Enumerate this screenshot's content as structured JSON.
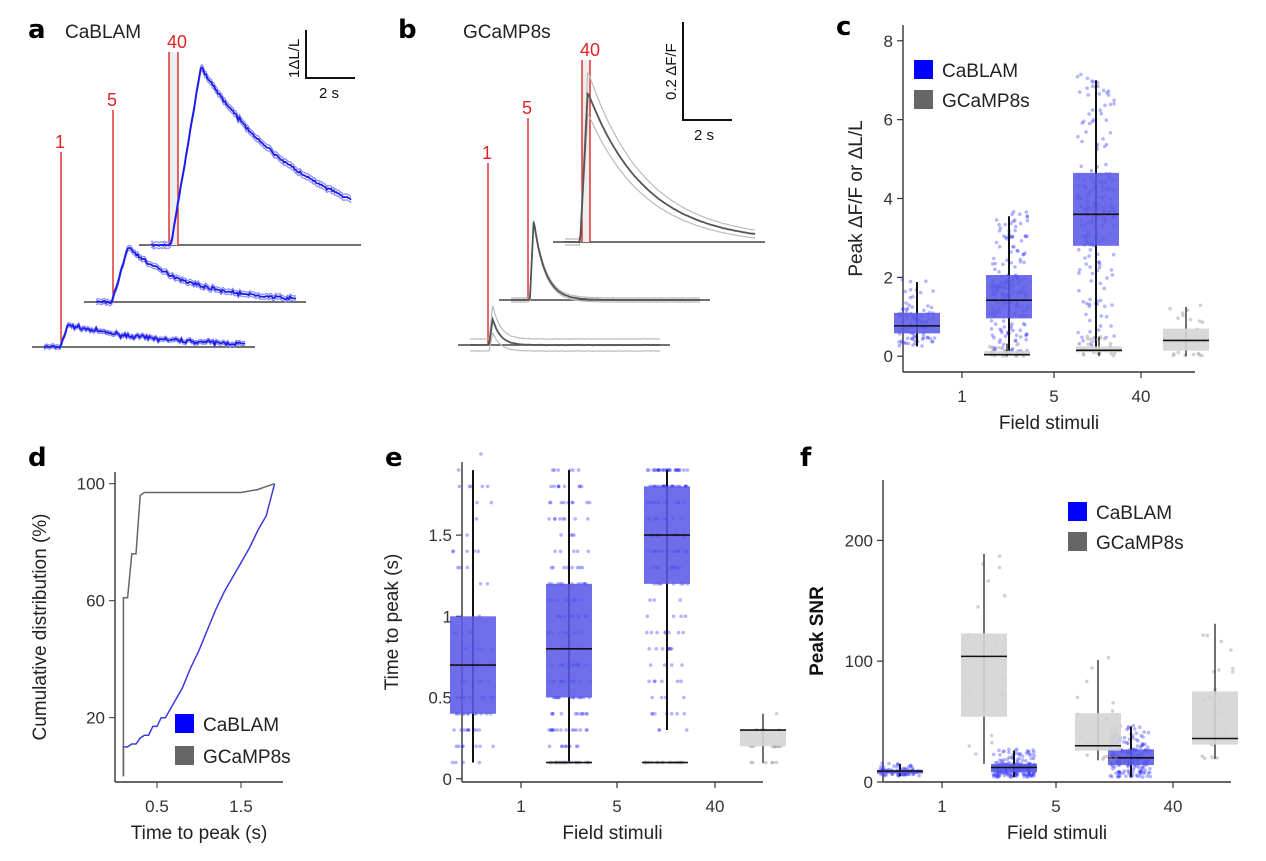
{
  "colors": {
    "cablam": "#1a1aee",
    "cablam_box": "#5a5ae8",
    "gcamp": "#666666",
    "gcamp_box": "#d4d4d4",
    "stimulus": "#e02424",
    "axis": "#333333"
  },
  "legend": {
    "cablam": "CaBLAM",
    "gcamp": "GCaMP8s"
  },
  "chart_data": [
    {
      "panel": "a",
      "type": "line",
      "title": "CaBLAM",
      "scale_bar": {
        "y_label": "1ΔL/L",
        "x_label": "2 s"
      },
      "stimulus_labels": [
        "1",
        "5",
        "40"
      ],
      "traces": [
        {
          "stimuli": "1",
          "peak": 0.35,
          "decay": "slow, noisy"
        },
        {
          "stimuli": "5",
          "peak": 0.75,
          "decay": "slow"
        },
        {
          "stimuli": "40",
          "peak": 2.3,
          "decay": "slow"
        }
      ]
    },
    {
      "panel": "b",
      "type": "line",
      "title": "GCaMP8s",
      "scale_bar": {
        "y_label": "0.2 ΔF/F",
        "x_label": "2 s"
      },
      "stimulus_labels": [
        "1",
        "5",
        "40"
      ],
      "traces": [
        {
          "stimuli": "1",
          "peak": 0.1,
          "decay": "fast"
        },
        {
          "stimuli": "5",
          "peak": 0.33,
          "decay": "fast"
        },
        {
          "stimuli": "40",
          "peak": 0.62,
          "decay": "fast"
        }
      ]
    },
    {
      "panel": "c",
      "type": "box",
      "title": "",
      "xlabel": "Field stimuli",
      "ylabel": "Peak ΔF/F or ΔL/L",
      "categories": [
        "1",
        "5",
        "40"
      ],
      "ylim": [
        -0.4,
        8.4
      ],
      "yticks": [
        0,
        2,
        4,
        6,
        8
      ],
      "legend_position": "top-left",
      "series": [
        {
          "name": "CaBLAM",
          "boxes": [
            {
              "q1": 0.58,
              "median": 0.77,
              "q3": 1.1,
              "whisker_low": 0.25,
              "whisker_high": 1.88
            },
            {
              "q1": 0.96,
              "median": 1.42,
              "q3": 2.06,
              "whisker_low": 0.12,
              "whisker_high": 3.55
            },
            {
              "q1": 2.8,
              "median": 3.6,
              "q3": 4.65,
              "whisker_low": 0.18,
              "whisker_high": 7.0
            }
          ]
        },
        {
          "name": "GCaMP8s",
          "boxes": [
            {
              "q1": 0.02,
              "median": 0.04,
              "q3": 0.13,
              "whisker_low": 0.0,
              "whisker_high": 0.32
            },
            {
              "q1": 0.1,
              "median": 0.15,
              "q3": 0.25,
              "whisker_low": 0.0,
              "whisker_high": 0.5
            },
            {
              "q1": 0.14,
              "median": 0.4,
              "q3": 0.7,
              "whisker_low": 0.0,
              "whisker_high": 1.25
            }
          ]
        }
      ]
    },
    {
      "panel": "d",
      "type": "line",
      "xlabel": "Time to peak (s)",
      "ylabel": "Cumulative distribution (%)",
      "xlim": [
        0,
        2.0
      ],
      "ylim": [
        -2,
        104
      ],
      "xticks": [
        0.5,
        1.5
      ],
      "yticks": [
        20,
        60,
        100
      ],
      "legend_position": "bottom-right",
      "series": [
        {
          "name": "CaBLAM",
          "x": [
            0.1,
            0.1,
            0.15,
            0.2,
            0.25,
            0.3,
            0.35,
            0.4,
            0.45,
            0.5,
            0.55,
            0.6,
            0.7,
            0.8,
            0.9,
            1.0,
            1.1,
            1.2,
            1.3,
            1.4,
            1.5,
            1.6,
            1.7,
            1.8,
            1.9
          ],
          "y": [
            0,
            10,
            10,
            11,
            11,
            13,
            14,
            14,
            17,
            17,
            20,
            20,
            25,
            30,
            37,
            43,
            50,
            57,
            63,
            68,
            73,
            78,
            84,
            89,
            100
          ]
        },
        {
          "name": "GCaMP8s",
          "x": [
            0.1,
            0.1,
            0.15,
            0.2,
            0.25,
            0.3,
            0.35,
            0.4,
            1.5,
            1.7,
            1.8,
            1.9
          ],
          "y": [
            0,
            61,
            61,
            76,
            76,
            96,
            97,
            97,
            97,
            98,
            99,
            100
          ]
        }
      ]
    },
    {
      "panel": "e",
      "type": "box",
      "xlabel": "Field stimuli",
      "ylabel": "Time to peak (s)",
      "categories": [
        "1",
        "5",
        "40"
      ],
      "ylim": [
        -0.02,
        1.95
      ],
      "yticks": [
        0,
        0.5,
        1.0,
        1.5
      ],
      "series": [
        {
          "name": "CaBLAM",
          "boxes": [
            {
              "q1": 0.4,
              "median": 0.7,
              "q3": 1.0,
              "whisker_low": 0.1,
              "whisker_high": 1.9
            },
            {
              "q1": 0.5,
              "median": 0.8,
              "q3": 1.2,
              "whisker_low": 0.1,
              "whisker_high": 1.9
            },
            {
              "q1": 1.2,
              "median": 1.5,
              "q3": 1.8,
              "whisker_low": 0.3,
              "whisker_high": 1.9
            }
          ]
        },
        {
          "name": "GCaMP8s",
          "boxes": [
            {
              "q1": 0.1,
              "median": 0.1,
              "q3": 0.1,
              "whisker_low": 0.1,
              "whisker_high": 0.1
            },
            {
              "q1": 0.1,
              "median": 0.1,
              "q3": 0.1,
              "whisker_low": 0.1,
              "whisker_high": 0.1
            },
            {
              "q1": 0.2,
              "median": 0.3,
              "q3": 0.3,
              "whisker_low": 0.1,
              "whisker_high": 0.4
            }
          ]
        }
      ]
    },
    {
      "panel": "f",
      "type": "box",
      "xlabel": "Field stimuli",
      "ylabel": "Peak SNR",
      "categories": [
        "1",
        "5",
        "40"
      ],
      "ylim": [
        0,
        250
      ],
      "yticks": [
        0,
        100,
        200
      ],
      "legend_position": "top-right",
      "series": [
        {
          "name": "CaBLAM",
          "boxes": [
            {
              "q1": 7,
              "median": 9,
              "q3": 10,
              "whisker_low": 5,
              "whisker_high": 15
            },
            {
              "q1": 8,
              "median": 12,
              "q3": 15,
              "whisker_low": 4,
              "whisker_high": 26
            },
            {
              "q1": 14,
              "median": 20,
              "q3": 27,
              "whisker_low": 4,
              "whisker_high": 46
            }
          ]
        },
        {
          "name": "GCaMP8s",
          "boxes": [
            {
              "q1": 54,
              "median": 104,
              "q3": 123,
              "whisker_low": 15,
              "whisker_high": 189
            },
            {
              "q1": 26,
              "median": 30,
              "q3": 57,
              "whisker_low": 18,
              "whisker_high": 101
            },
            {
              "q1": 31,
              "median": 36,
              "q3": 75,
              "whisker_low": 19,
              "whisker_high": 131
            }
          ]
        }
      ]
    }
  ]
}
